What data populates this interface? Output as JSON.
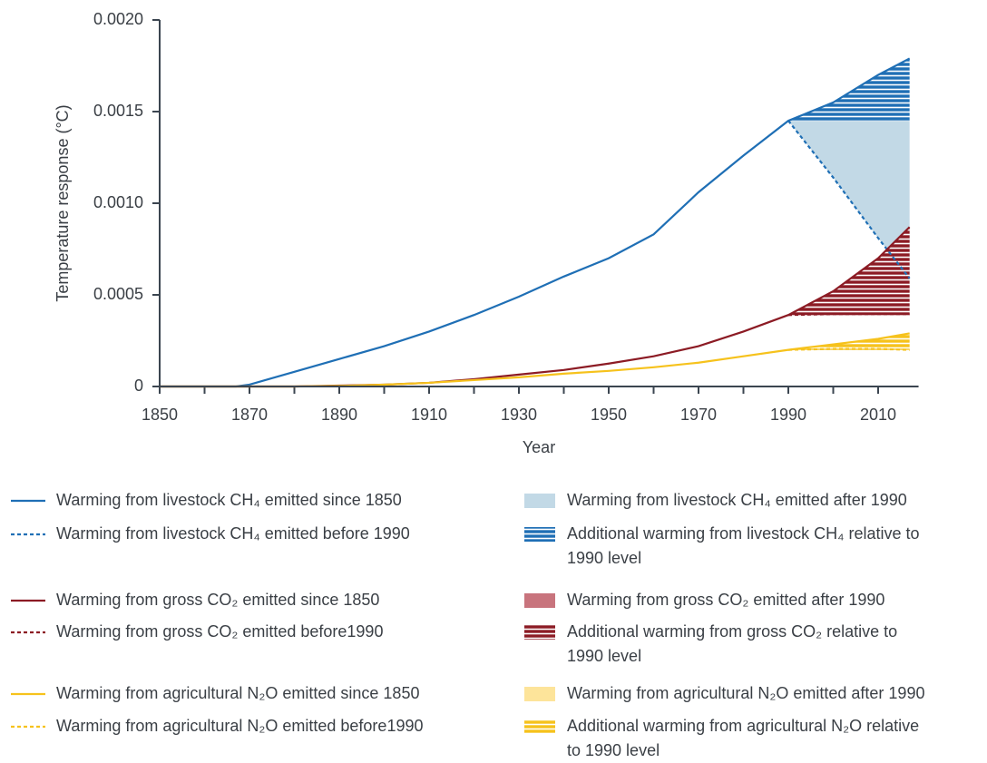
{
  "chart_data": {
    "type": "line",
    "y_label": "Temperature response (°C)",
    "x_label": "Year",
    "xlim": [
      1850,
      2019
    ],
    "ylim": [
      0,
      0.002
    ],
    "xticks": [
      1850,
      1870,
      1890,
      1910,
      1930,
      1950,
      1970,
      1990,
      2010
    ],
    "xminorticks": [
      1860,
      1880,
      1900,
      1920,
      1940,
      1960,
      1980,
      2000
    ],
    "yticks": [
      0,
      {
        "value": 0.0005,
        "label": "0.0005"
      },
      {
        "value": 0.001,
        "label": "0.0010"
      },
      {
        "value": 0.0015,
        "label": "0.0015"
      },
      {
        "value": 0.002,
        "label": "0.0020"
      }
    ],
    "groups": [
      {
        "since": {
          "name": "Warming from livestock CH₄ emitted since 1850",
          "color": "#1f6fb5",
          "x": [
            1850,
            1860,
            1867,
            1870,
            1880,
            1890,
            1900,
            1910,
            1920,
            1930,
            1940,
            1950,
            1960,
            1970,
            1980,
            1990,
            2000,
            2010,
            2017
          ],
          "values": [
            0,
            0,
            0,
            1e-05,
            8e-05,
            0.00015,
            0.00022,
            0.0003,
            0.00039,
            0.00049,
            0.0006,
            0.0007,
            0.00083,
            0.00106,
            0.00126,
            0.00145,
            0.00155,
            0.0017,
            0.00179
          ]
        },
        "before": {
          "name": "Warming from livestock CH₄ emitted before 1990",
          "color": "#1f6fb5",
          "dash": true,
          "x": [
            1990,
            2000,
            2010,
            2017
          ],
          "values": [
            0.00145,
            0.00114,
            0.00081,
            0.00059
          ]
        },
        "after": {
          "name": "Warming from livestock CH₄ emitted after 1990",
          "color": "#c2d9e6"
        },
        "additional": {
          "name": "Additional warming from livestock CH₄ relative to 1990 level",
          "color": "#1f6fb5"
        }
      },
      {
        "since": {
          "name": "Warming from gross CO₂ emitted since 1850",
          "color": "#8c1b24",
          "x": [
            1850,
            1860,
            1867,
            1870,
            1880,
            1890,
            1900,
            1910,
            1920,
            1930,
            1940,
            1950,
            1960,
            1970,
            1980,
            1990,
            2000,
            2010,
            2017
          ],
          "values": [
            0,
            0,
            0,
            0,
            0,
            5e-06,
            1e-05,
            2e-05,
            4e-05,
            6.5e-05,
            9e-05,
            0.000125,
            0.000165,
            0.00022,
            0.0003,
            0.00039,
            0.00052,
            0.0007,
            0.00087
          ]
        },
        "before": {
          "name": "Warming from gross CO₂ emitted before1990",
          "color": "#8c1b24",
          "dash": true,
          "x": [
            1990,
            2000,
            2010,
            2017
          ],
          "values": [
            0.00039,
            0.000395,
            0.000395,
            0.000395
          ]
        },
        "after": {
          "name": "Warming from gross CO₂ emitted after 1990",
          "color": "#c8747d"
        },
        "additional": {
          "name": "Additional warming from gross CO₂ relative to 1990 level",
          "color": "#8c1b24"
        }
      },
      {
        "since": {
          "name": "Warming from agricultural N₂O emitted since 1850",
          "color": "#f6c21c",
          "x": [
            1850,
            1860,
            1867,
            1870,
            1880,
            1890,
            1900,
            1910,
            1920,
            1930,
            1940,
            1950,
            1960,
            1970,
            1980,
            1990,
            2000,
            2010,
            2017
          ],
          "values": [
            0,
            0,
            0,
            0,
            0,
            3e-06,
            1e-05,
            2e-05,
            3.5e-05,
            5e-05,
            7e-05,
            8.5e-05,
            0.000105,
            0.00013,
            0.000165,
            0.0002,
            0.00023,
            0.00026,
            0.00029
          ]
        },
        "before": {
          "name": "Warming from agricultural N₂O emitted before1990",
          "color": "#f6c21c",
          "dash": true,
          "x": [
            1990,
            2000,
            2010,
            2017
          ],
          "values": [
            0.0002,
            0.000205,
            0.000205,
            0.0002
          ]
        },
        "after": {
          "name": "Warming from agricultural N₂O emitted after 1990",
          "color": "#fde49a"
        },
        "additional": {
          "name": "Additional warming from agricultural N₂O relative to 1990 level",
          "color": "#f6c21c"
        }
      }
    ]
  }
}
